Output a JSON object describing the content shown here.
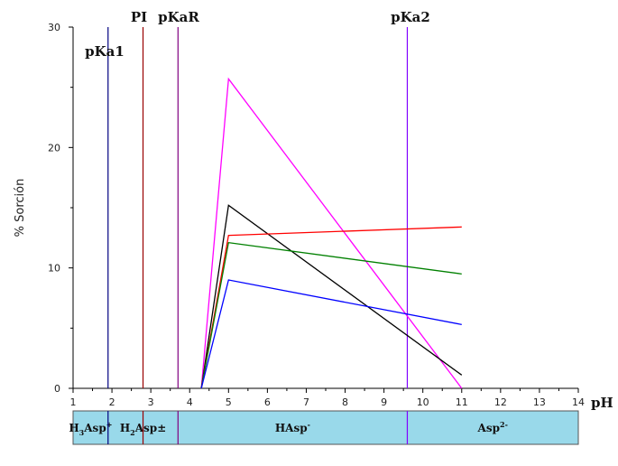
{
  "chart_data": {
    "type": "line",
    "title": "",
    "xlabel": "pH",
    "ylabel": "% Sorción",
    "xlim": [
      1,
      14
    ],
    "ylim": [
      0,
      30
    ],
    "x_ticks": [
      "1",
      "2",
      "3",
      "4",
      "5",
      "6",
      "7",
      "8",
      "9",
      "10",
      "11",
      "12",
      "13",
      "14"
    ],
    "y_ticks": [
      "0",
      "10",
      "20",
      "30"
    ],
    "series": [
      {
        "color": "#ff00ff",
        "x": [
          4.3,
          5,
          11
        ],
        "y": [
          0,
          25.7,
          0
        ]
      },
      {
        "color": "#000000",
        "x": [
          4.3,
          5,
          11
        ],
        "y": [
          0,
          15.2,
          1.1
        ]
      },
      {
        "color": "#ff0000",
        "x": [
          4.3,
          5,
          11
        ],
        "y": [
          0,
          12.7,
          13.4
        ]
      },
      {
        "color": "#008000",
        "x": [
          4.3,
          5,
          11
        ],
        "y": [
          0,
          12.1,
          9.5
        ]
      },
      {
        "color": "#0000ff",
        "x": [
          4.3,
          5,
          11
        ],
        "y": [
          0,
          9.0,
          5.3
        ]
      }
    ],
    "vlines": [
      {
        "label": "pKa1",
        "x": 1.9,
        "color": "#000080"
      },
      {
        "label": "PI",
        "x": 2.8,
        "color": "#990000"
      },
      {
        "label": "pKaR",
        "x": 3.7,
        "color": "#800080"
      },
      {
        "label": "pKa2",
        "x": 9.6,
        "color": "#8000ff"
      }
    ],
    "species_bar": {
      "color": "#99d9ea",
      "regions": [
        {
          "base": "H",
          "sub": "3",
          "rest": "Asp",
          "sup": "+",
          "x0": 1,
          "x1": 1.9
        },
        {
          "base": "H",
          "sub": "2",
          "rest": "Asp±",
          "sup": "",
          "x0": 1.9,
          "x1": 3.7
        },
        {
          "base": "",
          "sub": "",
          "rest": "HAsp",
          "sup": "-",
          "x0": 3.7,
          "x1": 9.6
        },
        {
          "base": "",
          "sub": "",
          "rest": "Asp",
          "sup": "2-",
          "x0": 9.6,
          "x1": 14
        }
      ],
      "dividers": [
        2.8
      ]
    }
  }
}
